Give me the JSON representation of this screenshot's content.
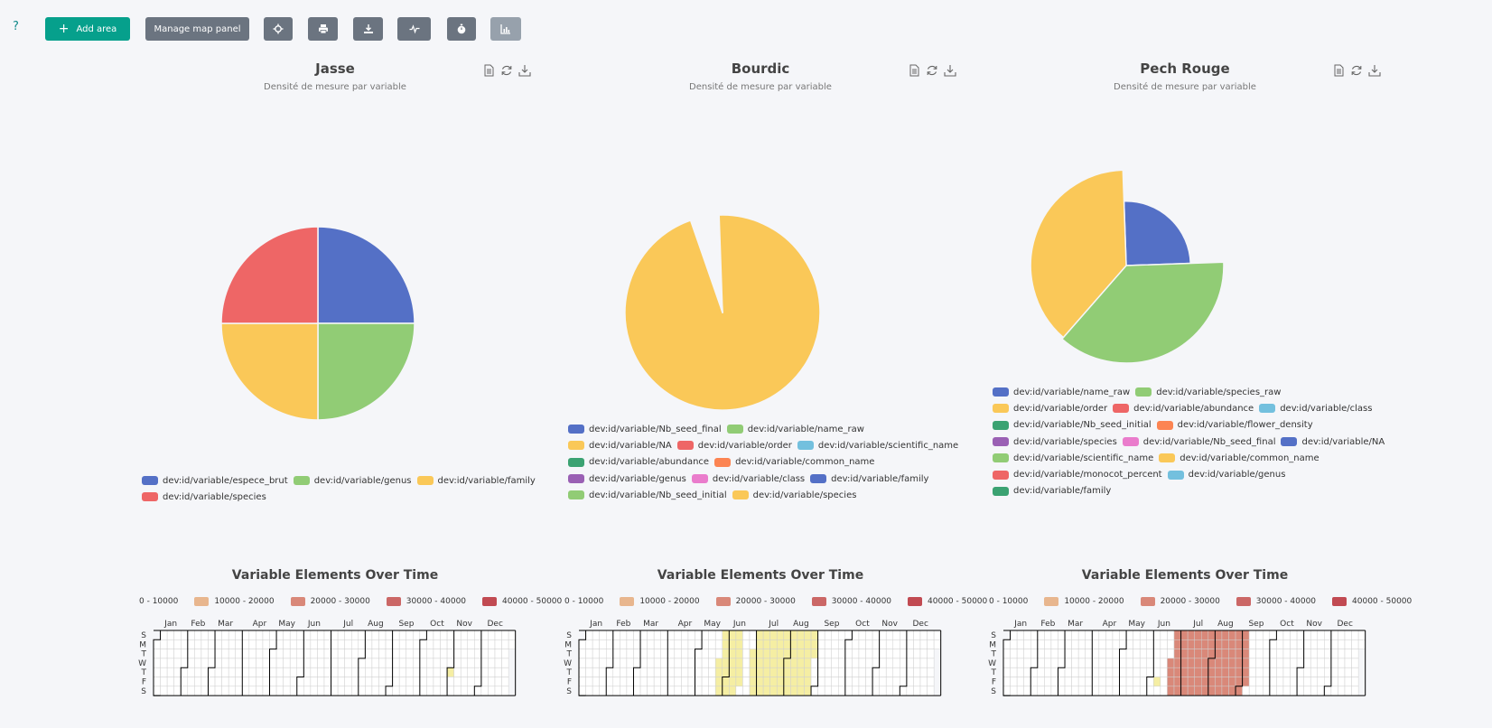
{
  "toolbar": {
    "help_label": "?",
    "add_area_label": "Add area",
    "manage_panel_label": "Manage map panel"
  },
  "colors": {
    "accent": "#06a08c",
    "button_gray": "#6b7480",
    "palette": [
      "#5470c6",
      "#91cc75",
      "#fac858",
      "#ee6666",
      "#73c0de",
      "#3ba272",
      "#fc8452",
      "#9a60b4",
      "#ea7ccc"
    ]
  },
  "panels": [
    {
      "title": "Jasse",
      "subtitle": "Densité de mesure par variable",
      "legend": [
        [
          {
            "label": "dev:id/variable/espece_brut",
            "color": "#5470c6"
          },
          {
            "label": "dev:id/variable/genus",
            "color": "#91cc75"
          },
          {
            "label": "dev:id/variable/family",
            "color": "#fac858"
          }
        ],
        [
          {
            "label": "dev:id/variable/species",
            "color": "#ee6666"
          }
        ]
      ],
      "chart_data": {
        "type": "pie",
        "rose": true,
        "slices": [
          {
            "color": "#5470c6",
            "value": 25,
            "radius": 1.0
          },
          {
            "color": "#91cc75",
            "value": 25,
            "radius": 1.0
          },
          {
            "color": "#fac858",
            "value": 25,
            "radius": 1.0
          },
          {
            "color": "#ee6666",
            "value": 25,
            "radius": 1.0
          }
        ]
      },
      "heatmap": {
        "title": "Variable Elements Over Time",
        "legend": [
          "0 - 10000",
          "10000 - 20000",
          "20000 - 30000",
          "30000 - 40000",
          "40000 - 50000"
        ],
        "months": [
          "Jan",
          "Feb",
          "Mar",
          "Apr",
          "May",
          "Jun",
          "Jul",
          "Aug",
          "Sep",
          "Oct",
          "Nov",
          "Dec"
        ],
        "days": [
          "S",
          "M",
          "T",
          "W",
          "T",
          "F",
          "S"
        ],
        "ranges": [
          {
            "start": 304,
            "end": 305,
            "level": 0
          }
        ]
      }
    },
    {
      "title": "Bourdic",
      "subtitle": "Densité de mesure par variable",
      "legend": [
        [
          {
            "label": "dev:id/variable/Nb_seed_final",
            "color": "#5470c6"
          },
          {
            "label": "dev:id/variable/name_raw",
            "color": "#91cc75"
          }
        ],
        [
          {
            "label": "dev:id/variable/NA",
            "color": "#fac858"
          },
          {
            "label": "dev:id/variable/order",
            "color": "#ee6666"
          },
          {
            "label": "dev:id/variable/scientific_name",
            "color": "#73c0de"
          }
        ],
        [
          {
            "label": "dev:id/variable/abundance",
            "color": "#3ba272"
          },
          {
            "label": "dev:id/variable/common_name",
            "color": "#fc8452"
          }
        ],
        [
          {
            "label": "dev:id/variable/genus",
            "color": "#9a60b4"
          },
          {
            "label": "dev:id/variable/class",
            "color": "#ea7ccc"
          },
          {
            "label": "dev:id/variable/family",
            "color": "#5470c6"
          }
        ],
        [
          {
            "label": "dev:id/variable/Nb_seed_initial",
            "color": "#91cc75"
          },
          {
            "label": "dev:id/variable/species",
            "color": "#fac858"
          }
        ]
      ],
      "chart_data": {
        "type": "pie",
        "rose": true,
        "slices": [
          {
            "color": "#fac858",
            "value": 80,
            "radius": 1.0
          },
          {
            "color": "#73c0de",
            "value": 1,
            "radius": 0.05
          },
          {
            "color": "#5470c6",
            "value": 1,
            "radius": 0.04
          },
          {
            "color": "#ee6666",
            "value": 1,
            "radius": 0.1
          },
          {
            "color": "#fc8452",
            "value": 1,
            "radius": 0.06
          }
        ]
      },
      "heatmap": {
        "title": "Variable Elements Over Time",
        "legend": [
          "0 - 10000",
          "10000 - 20000",
          "20000 - 30000",
          "30000 - 40000",
          "40000 - 50000"
        ],
        "months": [
          "Jan",
          "Feb",
          "Mar",
          "Apr",
          "May",
          "Jun",
          "Jul",
          "Aug",
          "Sep",
          "Oct",
          "Nov",
          "Dec"
        ],
        "days": [
          "S",
          "M",
          "T",
          "W",
          "T",
          "F",
          "S"
        ],
        "ranges": [
          {
            "start": 142,
            "end": 166,
            "level": 0
          },
          {
            "start": 176,
            "end": 240,
            "level": 0
          }
        ]
      }
    },
    {
      "title": "Pech Rouge",
      "subtitle": "Densité de mesure par variable",
      "legend": [
        [
          {
            "label": "dev:id/variable/name_raw",
            "color": "#5470c6"
          },
          {
            "label": "dev:id/variable/species_raw",
            "color": "#91cc75"
          }
        ],
        [
          {
            "label": "dev:id/variable/order",
            "color": "#fac858"
          },
          {
            "label": "dev:id/variable/abundance",
            "color": "#ee6666"
          },
          {
            "label": "dev:id/variable/class",
            "color": "#73c0de"
          }
        ],
        [
          {
            "label": "dev:id/variable/Nb_seed_initial",
            "color": "#3ba272"
          },
          {
            "label": "dev:id/variable/flower_density",
            "color": "#fc8452"
          }
        ],
        [
          {
            "label": "dev:id/variable/species",
            "color": "#9a60b4"
          },
          {
            "label": "dev:id/variable/Nb_seed_final",
            "color": "#ea7ccc"
          },
          {
            "label": "dev:id/variable/NA",
            "color": "#5470c6"
          }
        ],
        [
          {
            "label": "dev:id/variable/scientific_name",
            "color": "#91cc75"
          },
          {
            "label": "dev:id/variable/common_name",
            "color": "#fac858"
          }
        ],
        [
          {
            "label": "dev:id/variable/monocot_percent",
            "color": "#ee6666"
          },
          {
            "label": "dev:id/variable/genus",
            "color": "#73c0de"
          }
        ],
        [
          {
            "label": "dev:id/variable/family",
            "color": "#3ba272"
          }
        ]
      ],
      "chart_data": {
        "type": "pie",
        "rose": true,
        "slices": [
          {
            "color": "#5470c6",
            "value": 25,
            "radius": 0.66
          },
          {
            "color": "#91cc75",
            "value": 37,
            "radius": 1.0
          },
          {
            "color": "#fac858",
            "value": 38,
            "radius": 0.98
          }
        ]
      },
      "heatmap": {
        "title": "Variable Elements Over Time",
        "legend": [
          "0 - 10000",
          "10000 - 20000",
          "20000 - 30000",
          "30000 - 40000",
          "40000 - 50000"
        ],
        "months": [
          "Jan",
          "Feb",
          "Mar",
          "Apr",
          "May",
          "Jun",
          "Jul",
          "Aug",
          "Sep",
          "Oct",
          "Nov",
          "Dec"
        ],
        "days": [
          "S",
          "M",
          "T",
          "W",
          "T",
          "F",
          "S"
        ],
        "ranges": [
          {
            "start": 158,
            "end": 159,
            "level": 0
          },
          {
            "start": 170,
            "end": 250,
            "level": 2
          }
        ]
      }
    }
  ]
}
